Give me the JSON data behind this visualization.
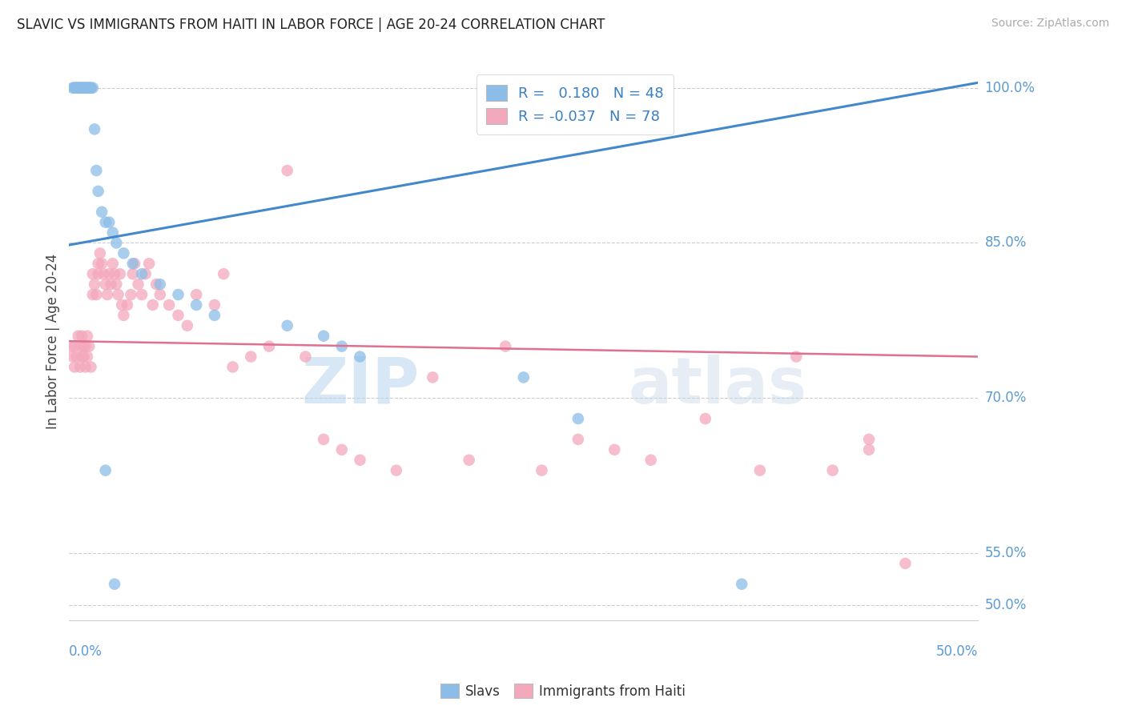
{
  "title": "SLAVIC VS IMMIGRANTS FROM HAITI IN LABOR FORCE | AGE 20-24 CORRELATION CHART",
  "source": "Source: ZipAtlas.com",
  "ylabel": "In Labor Force | Age 20-24",
  "xlim": [
    0.0,
    0.5
  ],
  "ylim": [
    0.485,
    1.025
  ],
  "ytick_vals": [
    0.5,
    0.55,
    0.7,
    0.85,
    1.0
  ],
  "ytick_labels": [
    "50.0%",
    "55.0%",
    "70.0%",
    "85.0%",
    "100.0%"
  ],
  "slavs_R": 0.18,
  "slavs_N": 48,
  "haiti_R": -0.037,
  "haiti_N": 78,
  "slavs_color": "#8BBDE8",
  "haiti_color": "#F4A8BC",
  "slavs_line_color": "#4488CC",
  "haiti_line_color": "#E07090",
  "slavs_line": [
    0.0,
    0.848,
    0.5,
    1.005
  ],
  "haiti_line": [
    0.0,
    0.755,
    0.5,
    0.74
  ],
  "watermark_color": "#C8DCF0",
  "background_color": "#FFFFFF",
  "grid_color": "#CCCCCC",
  "slavs_x": [
    0.002,
    0.003,
    0.003,
    0.004,
    0.004,
    0.005,
    0.005,
    0.006,
    0.006,
    0.006,
    0.007,
    0.007,
    0.007,
    0.008,
    0.008,
    0.009,
    0.009,
    0.01,
    0.01,
    0.011,
    0.011,
    0.012,
    0.012,
    0.013,
    0.014,
    0.015,
    0.016,
    0.018,
    0.02,
    0.022,
    0.024,
    0.026,
    0.03,
    0.035,
    0.04,
    0.05,
    0.06,
    0.07,
    0.08,
    0.12,
    0.14,
    0.15,
    0.16,
    0.25,
    0.28,
    0.37,
    0.02,
    0.025
  ],
  "slavs_y": [
    1.0,
    1.0,
    1.0,
    1.0,
    1.0,
    1.0,
    1.0,
    1.0,
    1.0,
    1.0,
    1.0,
    1.0,
    1.0,
    1.0,
    1.0,
    1.0,
    1.0,
    1.0,
    1.0,
    1.0,
    1.0,
    1.0,
    1.0,
    1.0,
    0.96,
    0.92,
    0.9,
    0.88,
    0.87,
    0.87,
    0.86,
    0.85,
    0.84,
    0.83,
    0.82,
    0.81,
    0.8,
    0.79,
    0.78,
    0.77,
    0.76,
    0.75,
    0.74,
    0.72,
    0.68,
    0.52,
    0.63,
    0.52
  ],
  "haiti_x": [
    0.001,
    0.002,
    0.003,
    0.003,
    0.004,
    0.005,
    0.006,
    0.006,
    0.007,
    0.007,
    0.008,
    0.008,
    0.009,
    0.009,
    0.01,
    0.01,
    0.011,
    0.012,
    0.013,
    0.013,
    0.014,
    0.015,
    0.016,
    0.016,
    0.017,
    0.018,
    0.019,
    0.02,
    0.021,
    0.022,
    0.023,
    0.024,
    0.025,
    0.026,
    0.027,
    0.028,
    0.029,
    0.03,
    0.032,
    0.034,
    0.035,
    0.036,
    0.038,
    0.04,
    0.042,
    0.044,
    0.046,
    0.048,
    0.05,
    0.055,
    0.06,
    0.065,
    0.07,
    0.08,
    0.085,
    0.09,
    0.1,
    0.11,
    0.12,
    0.13,
    0.14,
    0.15,
    0.16,
    0.18,
    0.2,
    0.22,
    0.24,
    0.26,
    0.28,
    0.3,
    0.32,
    0.35,
    0.38,
    0.4,
    0.42,
    0.44,
    0.44,
    0.46
  ],
  "haiti_y": [
    0.75,
    0.74,
    0.73,
    0.75,
    0.74,
    0.76,
    0.73,
    0.75,
    0.74,
    0.76,
    0.75,
    0.74,
    0.73,
    0.75,
    0.76,
    0.74,
    0.75,
    0.73,
    0.8,
    0.82,
    0.81,
    0.8,
    0.82,
    0.83,
    0.84,
    0.83,
    0.82,
    0.81,
    0.8,
    0.82,
    0.81,
    0.83,
    0.82,
    0.81,
    0.8,
    0.82,
    0.79,
    0.78,
    0.79,
    0.8,
    0.82,
    0.83,
    0.81,
    0.8,
    0.82,
    0.83,
    0.79,
    0.81,
    0.8,
    0.79,
    0.78,
    0.77,
    0.8,
    0.79,
    0.82,
    0.73,
    0.74,
    0.75,
    0.92,
    0.74,
    0.66,
    0.65,
    0.64,
    0.63,
    0.72,
    0.64,
    0.75,
    0.63,
    0.66,
    0.65,
    0.64,
    0.68,
    0.63,
    0.74,
    0.63,
    0.66,
    0.65,
    0.54
  ]
}
